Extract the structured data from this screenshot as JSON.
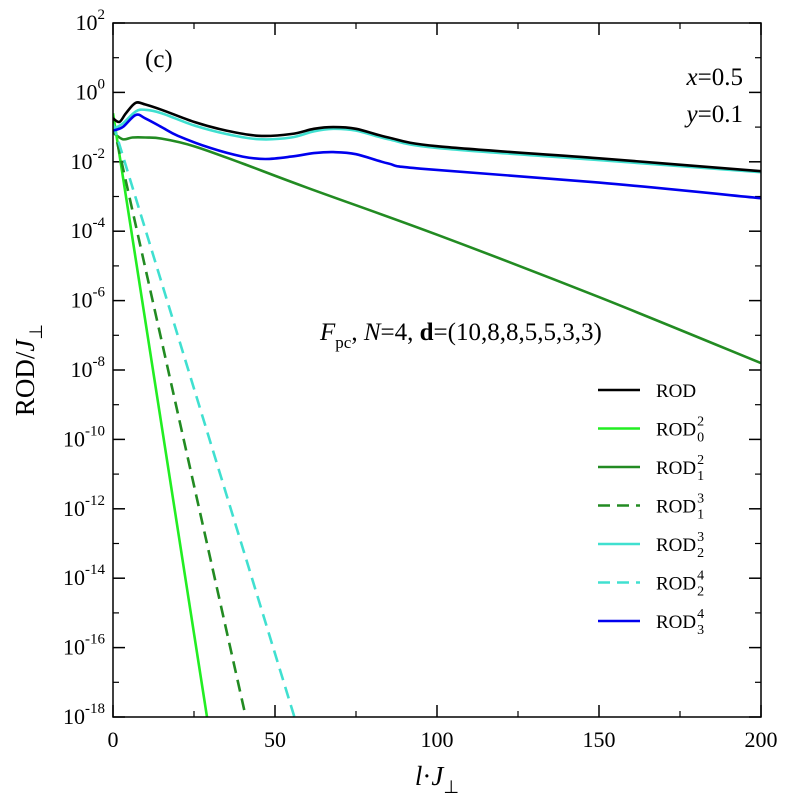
{
  "chart_data": {
    "type": "line",
    "panel_label": "(c)",
    "xlabel": {
      "italic": "l",
      "mid": "·",
      "italic2": "J",
      "sub": "⊥"
    },
    "ylabel": {
      "plain": "ROD/",
      "italic": "J",
      "sub": "⊥"
    },
    "xlim": [
      0,
      200
    ],
    "ylim_log10": [
      -18,
      2
    ],
    "y_scale": "log",
    "x_ticks": [
      "0",
      "50",
      "100",
      "150",
      "200"
    ],
    "y_tick_base": "10",
    "y_tick_exponents": [
      "-18",
      "-16",
      "-14",
      "-12",
      "-10",
      "-8",
      "-6",
      "-4",
      "-2",
      "0",
      "2"
    ],
    "annotations": {
      "x_param": {
        "var": "x",
        "val": "=0.5"
      },
      "y_param": {
        "var": "y",
        "val": "=0.1"
      },
      "model": {
        "F": "F",
        "F_sub": "pc",
        "sep1": ", ",
        "N": "N",
        "N_val": "=4, ",
        "d": "d",
        "d_val": "=(10,8,8,5,5,3,3)"
      }
    },
    "legend_position": "right",
    "series": [
      {
        "name": "ROD",
        "sub": "",
        "sup": "",
        "color": "#000000",
        "dash": false,
        "points": [
          [
            0,
            -0.75
          ],
          [
            2,
            -0.85
          ],
          [
            4,
            -0.6
          ],
          [
            7,
            -0.3
          ],
          [
            10,
            -0.35
          ],
          [
            15,
            -0.5
          ],
          [
            25,
            -0.85
          ],
          [
            35,
            -1.1
          ],
          [
            45,
            -1.25
          ],
          [
            55,
            -1.2
          ],
          [
            62,
            -1.05
          ],
          [
            68,
            -1.0
          ],
          [
            75,
            -1.05
          ],
          [
            85,
            -1.3
          ],
          [
            100,
            -1.55
          ],
          [
            150,
            -1.9
          ],
          [
            200,
            -2.27
          ]
        ]
      },
      {
        "name": "ROD",
        "sub": "0",
        "sup": "2",
        "color": "#22ee22",
        "dash": false,
        "points": [
          [
            0,
            -0.6
          ],
          [
            29,
            -18.0
          ]
        ]
      },
      {
        "name": "ROD",
        "sub": "1",
        "sup": "2",
        "color": "#228b22",
        "dash": false,
        "points": [
          [
            0,
            -1.15
          ],
          [
            3,
            -1.35
          ],
          [
            6,
            -1.3
          ],
          [
            10,
            -1.3
          ],
          [
            15,
            -1.33
          ],
          [
            25,
            -1.55
          ],
          [
            40,
            -2.05
          ],
          [
            60,
            -2.75
          ],
          [
            100,
            -4.1
          ],
          [
            150,
            -5.9
          ],
          [
            200,
            -7.8
          ]
        ]
      },
      {
        "name": "ROD",
        "sub": "1",
        "sup": "3",
        "color": "#228b22",
        "dash": true,
        "points": [
          [
            0,
            -0.9
          ],
          [
            41,
            -18.0
          ]
        ]
      },
      {
        "name": "ROD",
        "sub": "2",
        "sup": "3",
        "color": "#40e0d0",
        "dash": false,
        "points": [
          [
            0,
            -1.05
          ],
          [
            3,
            -0.9
          ],
          [
            7,
            -0.55
          ],
          [
            10,
            -0.5
          ],
          [
            15,
            -0.6
          ],
          [
            25,
            -0.95
          ],
          [
            35,
            -1.2
          ],
          [
            45,
            -1.35
          ],
          [
            55,
            -1.3
          ],
          [
            62,
            -1.12
          ],
          [
            68,
            -1.05
          ],
          [
            75,
            -1.1
          ],
          [
            85,
            -1.35
          ],
          [
            100,
            -1.6
          ],
          [
            150,
            -1.95
          ],
          [
            200,
            -2.3
          ]
        ]
      },
      {
        "name": "ROD",
        "sub": "2",
        "sup": "4",
        "color": "#40e0d0",
        "dash": true,
        "points": [
          [
            0,
            -0.9
          ],
          [
            56,
            -18.0
          ]
        ]
      },
      {
        "name": "ROD",
        "sub": "3",
        "sup": "4",
        "color": "#0000ee",
        "dash": false,
        "points": [
          [
            0,
            -1.1
          ],
          [
            3,
            -1.0
          ],
          [
            7,
            -0.65
          ],
          [
            10,
            -0.75
          ],
          [
            15,
            -1.0
          ],
          [
            20,
            -1.25
          ],
          [
            30,
            -1.6
          ],
          [
            40,
            -1.85
          ],
          [
            47,
            -1.92
          ],
          [
            55,
            -1.85
          ],
          [
            62,
            -1.75
          ],
          [
            68,
            -1.72
          ],
          [
            75,
            -1.78
          ],
          [
            85,
            -2.05
          ],
          [
            95,
            -2.2
          ],
          [
            150,
            -2.6
          ],
          [
            200,
            -3.05
          ]
        ]
      }
    ]
  }
}
